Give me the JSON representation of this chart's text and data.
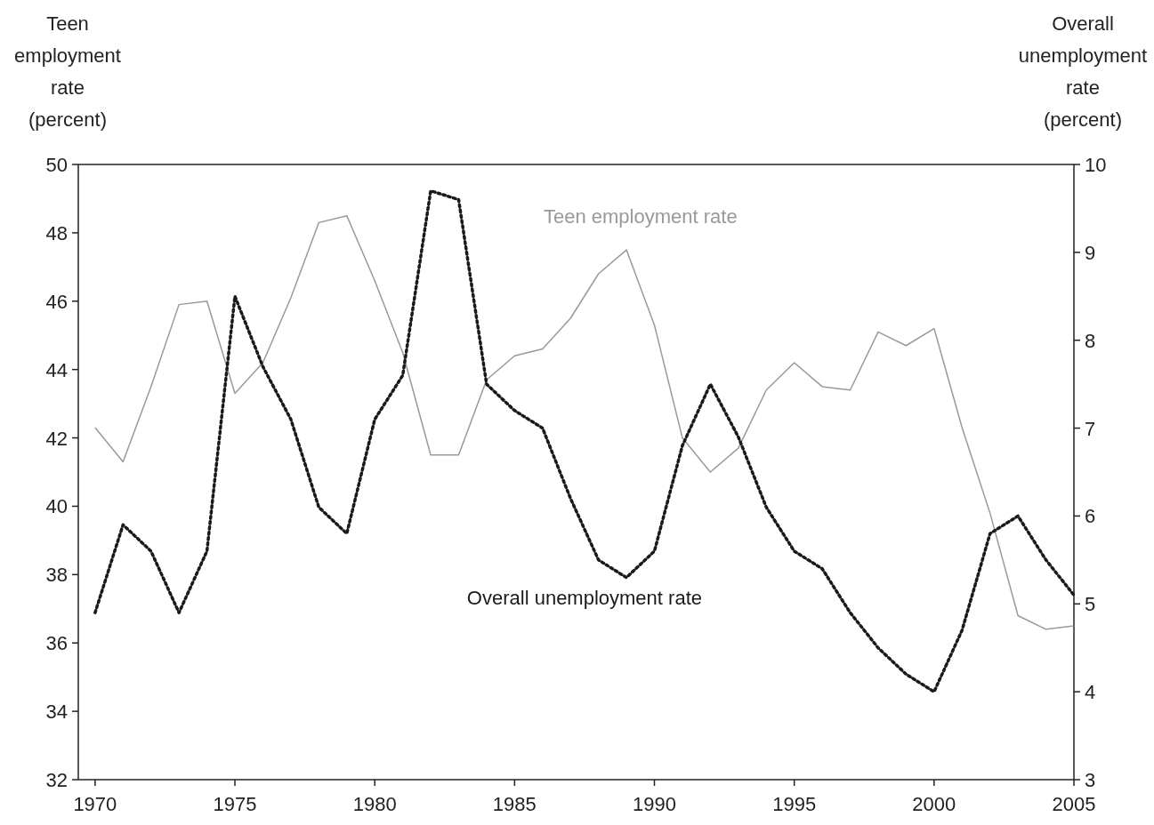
{
  "chart_data": {
    "type": "line",
    "ylabel": "Teen\nemployment\nrate\n(percent)",
    "y2label": "Overall\nunemployment\nrate\n(percent)",
    "x": [
      1970,
      1971,
      1972,
      1973,
      1974,
      1975,
      1976,
      1977,
      1978,
      1979,
      1980,
      1981,
      1982,
      1983,
      1984,
      1985,
      1986,
      1987,
      1988,
      1989,
      1990,
      1991,
      1992,
      1993,
      1994,
      1995,
      1996,
      1997,
      1998,
      1999,
      2000,
      2001,
      2002,
      2003,
      2004,
      2005
    ],
    "xlim": [
      1969.4,
      2005
    ],
    "xticks": [
      1970,
      1975,
      1980,
      1985,
      1990,
      1995,
      2000,
      2005
    ],
    "ylim": [
      32,
      50
    ],
    "yticks": [
      32,
      34,
      36,
      38,
      40,
      42,
      44,
      46,
      48,
      50
    ],
    "y2lim": [
      3,
      10
    ],
    "y2ticks": [
      3,
      4,
      5,
      6,
      7,
      8,
      9,
      10
    ],
    "grid": false,
    "legend": false,
    "marker": "none",
    "series": [
      {
        "name": "Teen employment rate",
        "color": "#999999",
        "line_style": "solid",
        "values": [
          42.3,
          41.3,
          43.5,
          45.9,
          46.0,
          43.3,
          44.2,
          46.1,
          48.3,
          48.5,
          46.6,
          44.5,
          41.5,
          41.5,
          43.7,
          44.4,
          44.6,
          45.5,
          46.8,
          47.5,
          45.3,
          42.0,
          41.0,
          41.7,
          43.4,
          44.2,
          43.5,
          43.4,
          45.1,
          44.7,
          45.2,
          42.3,
          39.8,
          36.8,
          36.4,
          36.5
        ]
      },
      {
        "name": "Overall unemployment rate",
        "color": "#1a1a1a",
        "line_style": "dotted",
        "axis": "y2",
        "values": [
          4.9,
          5.9,
          5.6,
          4.9,
          5.6,
          8.5,
          7.7,
          7.1,
          6.1,
          5.8,
          7.1,
          7.6,
          9.7,
          9.6,
          7.5,
          7.2,
          7.0,
          6.2,
          5.5,
          5.3,
          5.6,
          6.8,
          7.5,
          6.9,
          6.1,
          5.6,
          5.4,
          4.9,
          4.5,
          4.2,
          4.0,
          4.7,
          5.8,
          6.0,
          5.5,
          5.1
        ]
      }
    ]
  }
}
